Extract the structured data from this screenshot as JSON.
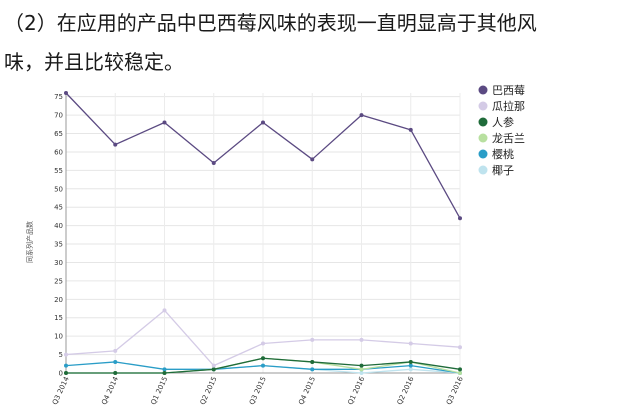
{
  "document": {
    "line1": "（2）在应用的产品中巴西莓风味的表现一直明显高于其他风",
    "line2": "味，并且比较稳定。"
  },
  "chart_data": {
    "type": "line",
    "title": "",
    "xlabel": "",
    "ylabel": "同系列产品数",
    "ylim": [
      0,
      76
    ],
    "yticks": [
      0,
      5,
      10,
      15,
      20,
      25,
      30,
      35,
      40,
      45,
      50,
      55,
      60,
      65,
      70,
      75
    ],
    "grid": true,
    "legend_position": "top-right",
    "categories": [
      "Q3 2014",
      "Q4 2014",
      "Q1 2015",
      "Q2 2015",
      "Q3 2015",
      "Q4 2015",
      "Q1 2016",
      "Q2 2016",
      "Q3 2016"
    ],
    "series": [
      {
        "name": "巴西莓",
        "color": "#5b4a82",
        "values": [
          76,
          62,
          68,
          57,
          68,
          58,
          70,
          66,
          42
        ]
      },
      {
        "name": "瓜拉那",
        "color": "#d4cbe6",
        "values": [
          5,
          6,
          17,
          2,
          8,
          9,
          9,
          8,
          7
        ]
      },
      {
        "name": "人参",
        "color": "#1f6b3a",
        "values": [
          0,
          0,
          0,
          1,
          4,
          3,
          2,
          3,
          1
        ]
      },
      {
        "name": "龙舌兰",
        "color": "#b8e0a0",
        "values": [
          0,
          0,
          0,
          1,
          4,
          3,
          1,
          3,
          0
        ]
      },
      {
        "name": "樱桃",
        "color": "#2a9dc7",
        "values": [
          2,
          3,
          1,
          1,
          2,
          1,
          1,
          2,
          0
        ]
      },
      {
        "name": "椰子",
        "color": "#bfe3ee",
        "values": [
          0,
          0,
          0,
          1,
          2,
          1,
          0,
          1,
          0
        ]
      }
    ]
  }
}
